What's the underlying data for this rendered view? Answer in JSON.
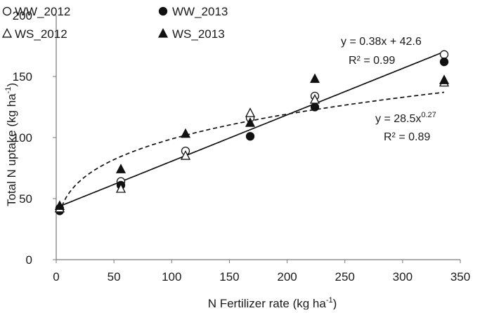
{
  "chart_data": {
    "type": "scatter",
    "xlabel": "N Fertilizer rate (kg ha",
    "xlabel_sup": "-1",
    "xlabel_end": ")",
    "ylabel": "Total N uptake (kg ha",
    "ylabel_sup": "-1",
    "ylabel_end": ")",
    "xlim": [
      0,
      350
    ],
    "ylim": [
      0,
      200
    ],
    "x_ticks": [
      0,
      50,
      100,
      150,
      200,
      250,
      300,
      350
    ],
    "y_ticks": [
      0,
      50,
      100,
      150,
      200
    ],
    "grid": false,
    "legend_position": "top-left",
    "series": [
      {
        "name": "WW_2012",
        "marker": "open-circle",
        "points": [
          [
            3,
            42
          ],
          [
            56,
            64
          ],
          [
            112,
            89
          ],
          [
            168,
            116
          ],
          [
            224,
            134
          ],
          [
            336,
            168
          ]
        ]
      },
      {
        "name": "WW_2013",
        "marker": "filled-circle",
        "points": [
          [
            3,
            40
          ],
          [
            56,
            61
          ],
          [
            168,
            101
          ],
          [
            224,
            125
          ],
          [
            336,
            162
          ]
        ]
      },
      {
        "name": "WS_2012",
        "marker": "open-triangle",
        "points": [
          [
            3,
            42
          ],
          [
            56,
            58
          ],
          [
            112,
            85
          ],
          [
            168,
            120
          ],
          [
            224,
            131
          ],
          [
            336,
            145
          ]
        ]
      },
      {
        "name": "WS_2013",
        "marker": "filled-triangle",
        "points": [
          [
            3,
            44
          ],
          [
            56,
            74
          ],
          [
            112,
            103
          ],
          [
            168,
            112
          ],
          [
            224,
            148
          ],
          [
            336,
            147
          ]
        ]
      }
    ],
    "trendlines": [
      {
        "kind": "linear",
        "style": "solid",
        "slope": 0.38,
        "intercept": 42.6,
        "x_range": [
          3,
          336
        ],
        "equation_prefix": "y = 0.38x + 42.6",
        "equation_sup": "",
        "r2_text": "R² = 0.99"
      },
      {
        "kind": "power",
        "style": "dashed",
        "coef": 28.5,
        "exponent": 0.27,
        "x_range": [
          3,
          336
        ],
        "equation_prefix": "y = 28.5x",
        "equation_sup": "0.27",
        "r2_text": "R² = 0.89"
      }
    ]
  }
}
